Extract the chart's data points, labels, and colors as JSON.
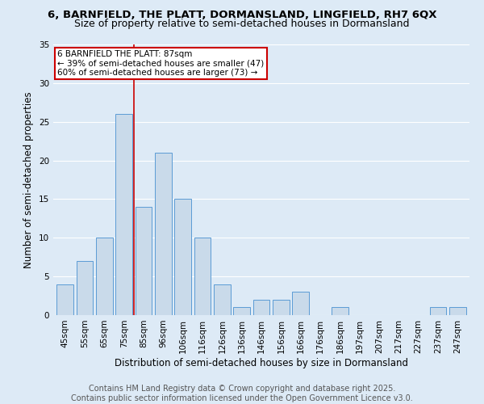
{
  "title1": "6, BARNFIELD, THE PLATT, DORMANSLAND, LINGFIELD, RH7 6QX",
  "title2": "Size of property relative to semi-detached houses in Dormansland",
  "xlabel": "Distribution of semi-detached houses by size in Dormansland",
  "ylabel": "Number of semi-detached properties",
  "categories": [
    "45sqm",
    "55sqm",
    "65sqm",
    "75sqm",
    "85sqm",
    "96sqm",
    "106sqm",
    "116sqm",
    "126sqm",
    "136sqm",
    "146sqm",
    "156sqm",
    "166sqm",
    "176sqm",
    "186sqm",
    "197sqm",
    "207sqm",
    "217sqm",
    "227sqm",
    "237sqm",
    "247sqm"
  ],
  "values": [
    4,
    7,
    10,
    26,
    14,
    21,
    15,
    10,
    4,
    1,
    2,
    2,
    3,
    0,
    1,
    0,
    0,
    0,
    0,
    1,
    1
  ],
  "bar_color": "#c9daea",
  "bar_edge_color": "#5b9bd5",
  "vline_index": 4,
  "marker_label": "6 BARNFIELD THE PLATT: 87sqm",
  "annotation_line1": "← 39% of semi-detached houses are smaller (47)",
  "annotation_line2": "60% of semi-detached houses are larger (73) →",
  "vline_color": "#cc0000",
  "ylim": [
    0,
    35
  ],
  "yticks": [
    0,
    5,
    10,
    15,
    20,
    25,
    30,
    35
  ],
  "footer1": "Contains HM Land Registry data © Crown copyright and database right 2025.",
  "footer2": "Contains public sector information licensed under the Open Government Licence v3.0.",
  "bg_color": "#ddeaf6",
  "title1_fontsize": 9.5,
  "title2_fontsize": 9,
  "axis_label_fontsize": 8.5,
  "tick_fontsize": 7.5,
  "footer_fontsize": 7,
  "annot_fontsize": 7.5
}
